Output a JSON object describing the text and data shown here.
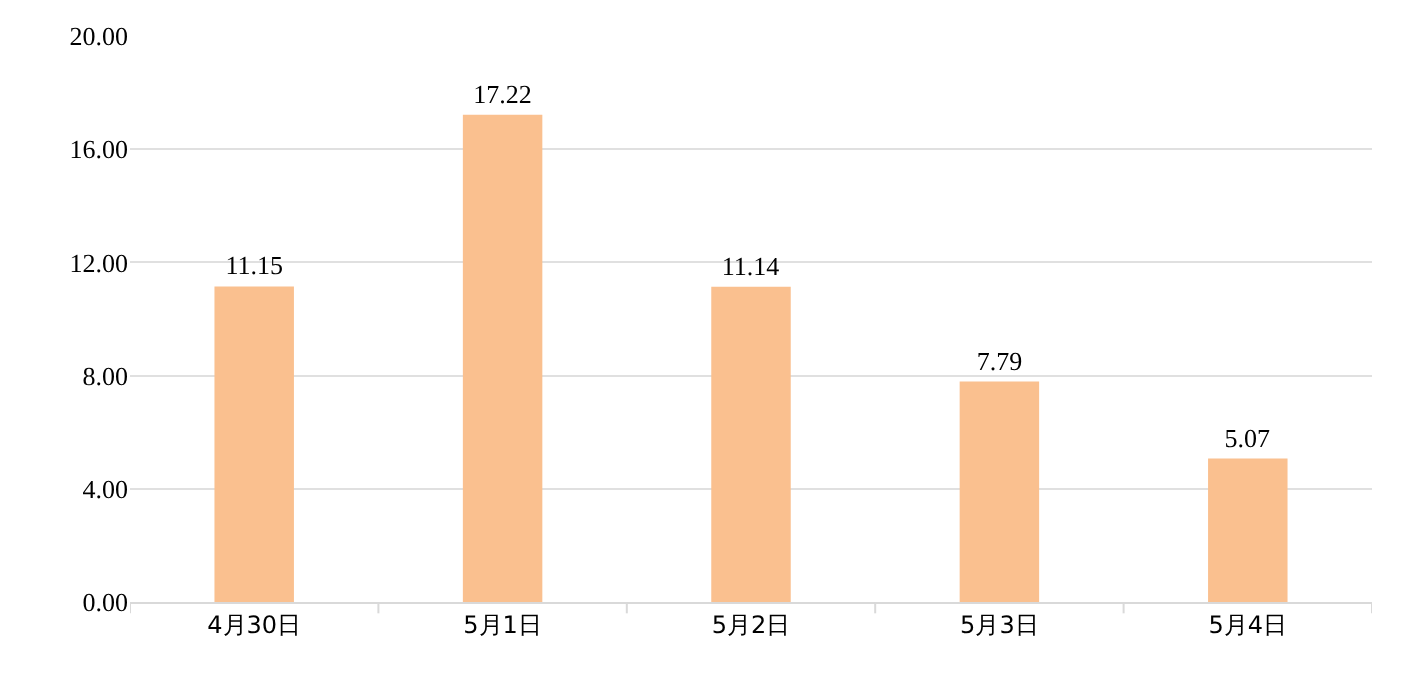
{
  "chart_data": {
    "type": "bar",
    "categories": [
      "4月30日",
      "5月1日",
      "5月2日",
      "5月3日",
      "5月4日"
    ],
    "values": [
      11.15,
      17.22,
      11.14,
      7.79,
      5.07
    ],
    "color": "#fac08f",
    "ylim": [
      0,
      20
    ],
    "yticks": [
      {
        "value": 0,
        "label": "0.00"
      },
      {
        "value": 4,
        "label": "4.00"
      },
      {
        "value": 8,
        "label": "8.00"
      },
      {
        "value": 12,
        "label": "12.00"
      },
      {
        "value": 16,
        "label": "16.00"
      },
      {
        "value": 20,
        "label": "20.00"
      }
    ],
    "grid": "y",
    "data_labels": true
  }
}
